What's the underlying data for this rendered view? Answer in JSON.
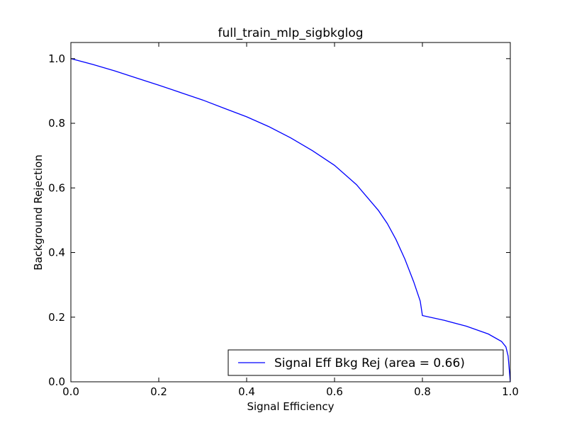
{
  "chart_data": {
    "type": "line",
    "title": "full_train_mlp_sigbkglog",
    "xlabel": "Signal Efficiency",
    "ylabel": "Background Rejection",
    "xlim": [
      0.0,
      1.0
    ],
    "ylim": [
      0.0,
      1.05
    ],
    "xticks": [
      "0.0",
      "0.2",
      "0.4",
      "0.6",
      "0.8",
      "1.0"
    ],
    "yticks": [
      "0.0",
      "0.2",
      "0.4",
      "0.6",
      "0.8",
      "1.0"
    ],
    "grid": false,
    "legend_position": "lower-right",
    "series": [
      {
        "name": "Signal Eff Bkg Rej (area = 0.66)",
        "color": "#0000ff",
        "x": [
          0.0,
          0.05,
          0.1,
          0.15,
          0.2,
          0.25,
          0.3,
          0.35,
          0.4,
          0.45,
          0.5,
          0.55,
          0.6,
          0.65,
          0.7,
          0.72,
          0.74,
          0.76,
          0.78,
          0.795,
          0.8,
          0.85,
          0.9,
          0.95,
          0.98,
          0.99,
          0.995,
          1.0
        ],
        "y": [
          1.0,
          0.982,
          0.962,
          0.94,
          0.918,
          0.895,
          0.872,
          0.846,
          0.82,
          0.79,
          0.755,
          0.715,
          0.67,
          0.61,
          0.53,
          0.49,
          0.44,
          0.38,
          0.31,
          0.25,
          0.205,
          0.19,
          0.172,
          0.148,
          0.125,
          0.108,
          0.08,
          0.0
        ]
      }
    ]
  }
}
